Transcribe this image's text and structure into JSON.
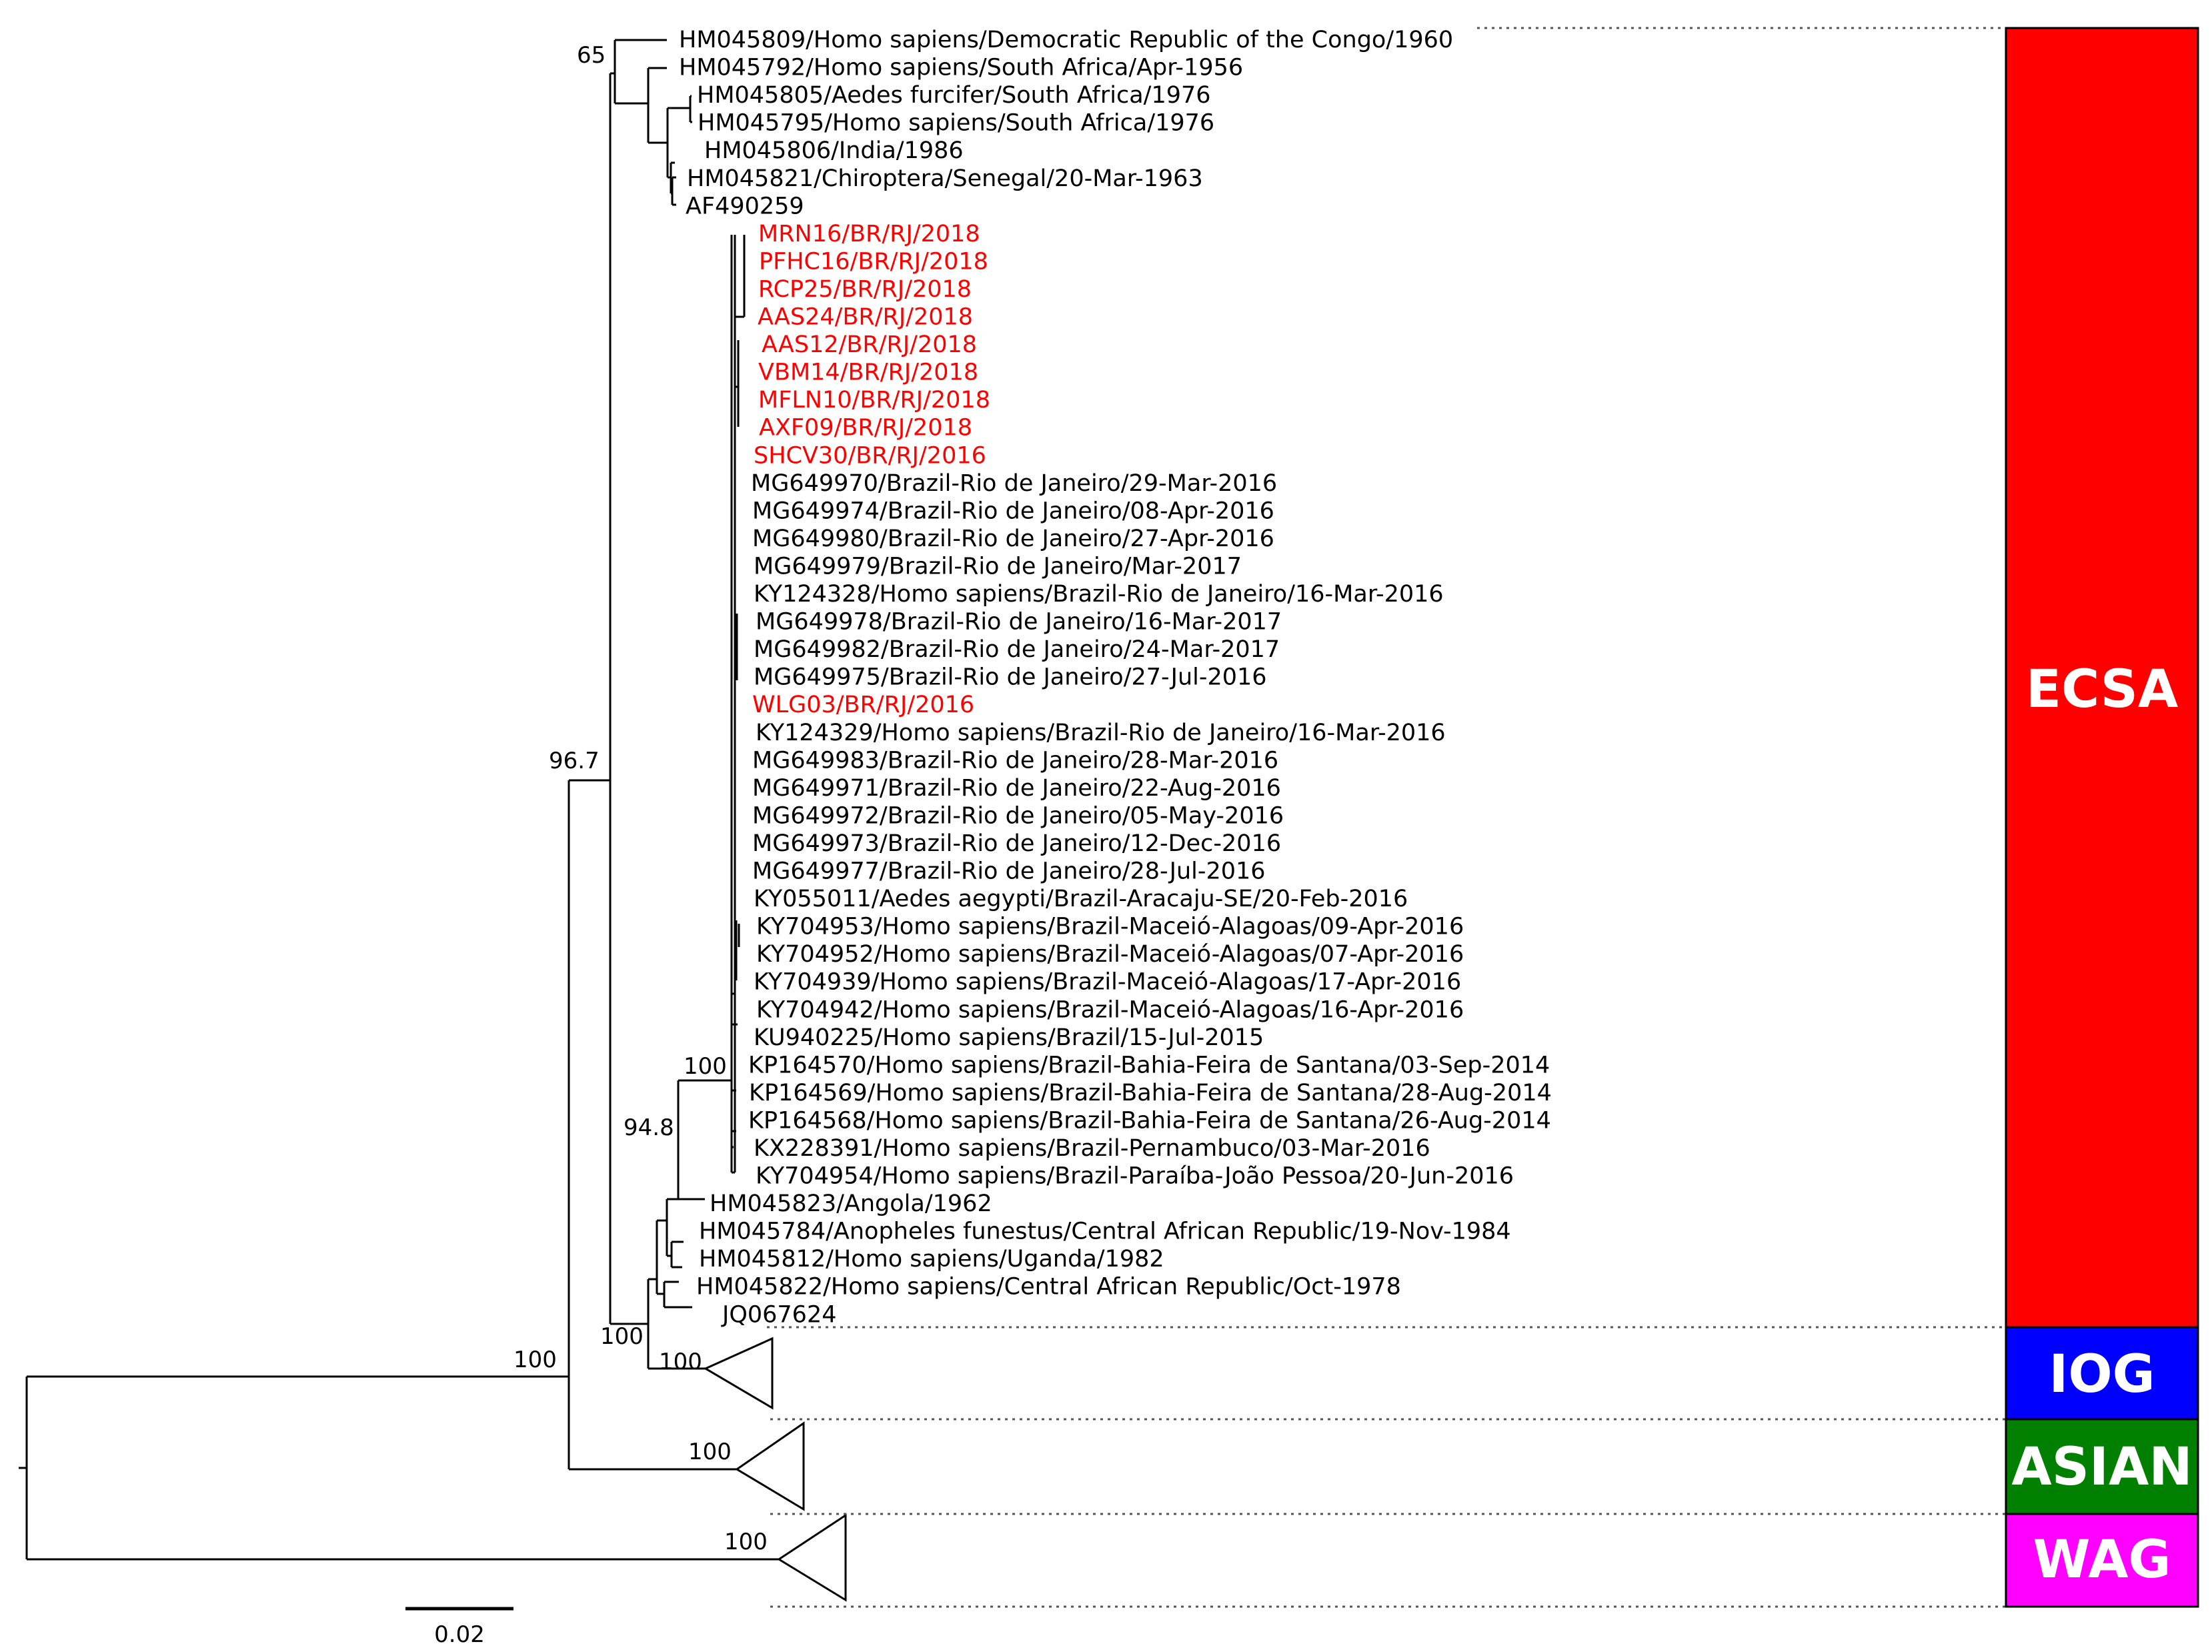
{
  "colors": {
    "highlight": "#ff0000",
    "ecsa": "#ff0000",
    "iog": "#0000ff",
    "asian": "#007f00",
    "wag": "#ff00ff",
    "text": "#000000"
  },
  "taxa": [
    {
      "name": "HM045809/Homo sapiens/Democratic Republic of the Congo/1960",
      "highlight": false
    },
    {
      "name": "HM045792/Homo sapiens/South Africa/Apr-1956",
      "highlight": false
    },
    {
      "name": "HM045805/Aedes furcifer/South Africa/1976",
      "highlight": false
    },
    {
      "name": "HM045795/Homo sapiens/South Africa/1976",
      "highlight": false
    },
    {
      "name": "HM045806/India/1986",
      "highlight": false
    },
    {
      "name": "HM045821/Chiroptera/Senegal/20-Mar-1963",
      "highlight": false
    },
    {
      "name": "AF490259",
      "highlight": false
    },
    {
      "name": "MRN16/BR/RJ/2018",
      "highlight": true
    },
    {
      "name": "PFHC16/BR/RJ/2018",
      "highlight": true
    },
    {
      "name": "RCP25/BR/RJ/2018",
      "highlight": true
    },
    {
      "name": "AAS24/BR/RJ/2018",
      "highlight": true
    },
    {
      "name": "AAS12/BR/RJ/2018",
      "highlight": true
    },
    {
      "name": "VBM14/BR/RJ/2018",
      "highlight": true
    },
    {
      "name": "MFLN10/BR/RJ/2018",
      "highlight": true
    },
    {
      "name": "AXF09/BR/RJ/2018",
      "highlight": true
    },
    {
      "name": "SHCV30/BR/RJ/2016",
      "highlight": true
    },
    {
      "name": "MG649970/Brazil-Rio de Janeiro/29-Mar-2016",
      "highlight": false
    },
    {
      "name": "MG649974/Brazil-Rio de Janeiro/08-Apr-2016",
      "highlight": false
    },
    {
      "name": "MG649980/Brazil-Rio de Janeiro/27-Apr-2016",
      "highlight": false
    },
    {
      "name": "MG649979/Brazil-Rio de Janeiro/Mar-2017",
      "highlight": false
    },
    {
      "name": "KY124328/Homo sapiens/Brazil-Rio de Janeiro/16-Mar-2016",
      "highlight": false
    },
    {
      "name": "MG649978/Brazil-Rio de Janeiro/16-Mar-2017",
      "highlight": false
    },
    {
      "name": "MG649982/Brazil-Rio de Janeiro/24-Mar-2017",
      "highlight": false
    },
    {
      "name": "MG649975/Brazil-Rio de Janeiro/27-Jul-2016",
      "highlight": false
    },
    {
      "name": "WLG03/BR/RJ/2016",
      "highlight": true
    },
    {
      "name": "KY124329/Homo sapiens/Brazil-Rio de Janeiro/16-Mar-2016",
      "highlight": false
    },
    {
      "name": "MG649983/Brazil-Rio de Janeiro/28-Mar-2016",
      "highlight": false
    },
    {
      "name": "MG649971/Brazil-Rio de Janeiro/22-Aug-2016",
      "highlight": false
    },
    {
      "name": "MG649972/Brazil-Rio de Janeiro/05-May-2016",
      "highlight": false
    },
    {
      "name": "MG649973/Brazil-Rio de Janeiro/12-Dec-2016",
      "highlight": false
    },
    {
      "name": "MG649977/Brazil-Rio de Janeiro/28-Jul-2016",
      "highlight": false
    },
    {
      "name": "KY055011/Aedes aegypti/Brazil-Aracaju-SE/20-Feb-2016",
      "highlight": false
    },
    {
      "name": "KY704953/Homo sapiens/Brazil-Maceió-Alagoas/09-Apr-2016",
      "highlight": false
    },
    {
      "name": "KY704952/Homo sapiens/Brazil-Maceió-Alagoas/07-Apr-2016",
      "highlight": false
    },
    {
      "name": "KY704939/Homo sapiens/Brazil-Maceió-Alagoas/17-Apr-2016",
      "highlight": false
    },
    {
      "name": "KY704942/Homo sapiens/Brazil-Maceió-Alagoas/16-Apr-2016",
      "highlight": false
    },
    {
      "name": "KU940225/Homo sapiens/Brazil/15-Jul-2015",
      "highlight": false
    },
    {
      "name": "KP164570/Homo sapiens/Brazil-Bahia-Feira de Santana/03-Sep-2014",
      "highlight": false
    },
    {
      "name": "KP164569/Homo sapiens/Brazil-Bahia-Feira de Santana/28-Aug-2014",
      "highlight": false
    },
    {
      "name": "KP164568/Homo sapiens/Brazil-Bahia-Feira de Santana/26-Aug-2014",
      "highlight": false
    },
    {
      "name": "KX228391/Homo sapiens/Brazil-Pernambuco/03-Mar-2016",
      "highlight": false
    },
    {
      "name": "KY704954/Homo sapiens/Brazil-Paraíba-João Pessoa/20-Jun-2016",
      "highlight": false
    },
    {
      "name": "HM045823/Angola/1962",
      "highlight": false
    },
    {
      "name": "HM045784/Anopheles funestus/Central African Republic/19-Nov-1984",
      "highlight": false
    },
    {
      "name": "HM045812/Homo sapiens/Uganda/1982",
      "highlight": false
    },
    {
      "name": "HM045822/Homo sapiens/Central African Republic/Oct-1978",
      "highlight": false
    },
    {
      "name": "JQ067624",
      "highlight": false
    }
  ],
  "support_values": [
    "65",
    "96.7",
    "100",
    "94.8",
    "100",
    "100",
    "100",
    "100",
    "100"
  ],
  "clades": [
    {
      "name": "ECSA"
    },
    {
      "name": "IOG"
    },
    {
      "name": "ASIAN"
    },
    {
      "name": "WAG"
    }
  ],
  "scale_bar": {
    "label": "0.02"
  }
}
